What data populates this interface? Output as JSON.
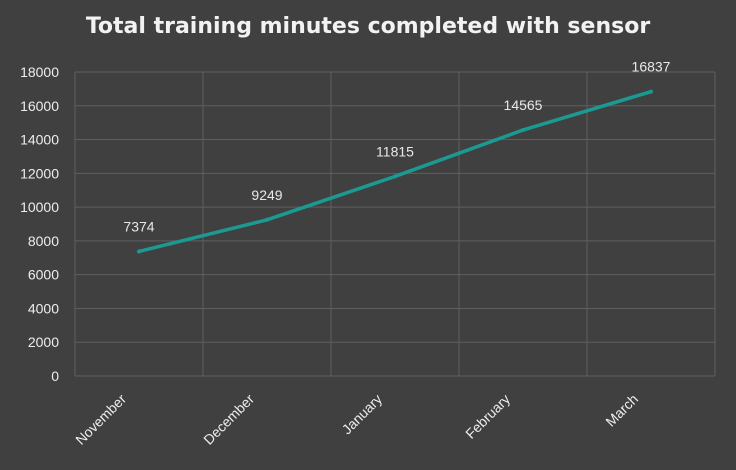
{
  "chart_data": {
    "type": "line",
    "title": "Total training minutes completed with sensor",
    "categories": [
      "November",
      "December",
      "January",
      "February",
      "March"
    ],
    "series": [
      {
        "values": [
          7374,
          9249,
          11815,
          14565,
          16837
        ]
      }
    ],
    "data_labels": [
      "7374",
      "9249",
      "11815",
      "14565",
      "16837"
    ],
    "ylim": [
      0,
      18000
    ],
    "yticks": [
      0,
      2000,
      4000,
      6000,
      8000,
      10000,
      12000,
      14000,
      16000,
      18000
    ],
    "grid": true,
    "colors": {
      "background": "#404040",
      "grid": "#5f5f5f",
      "line": "#1a9a93",
      "text": "#ededed"
    }
  }
}
